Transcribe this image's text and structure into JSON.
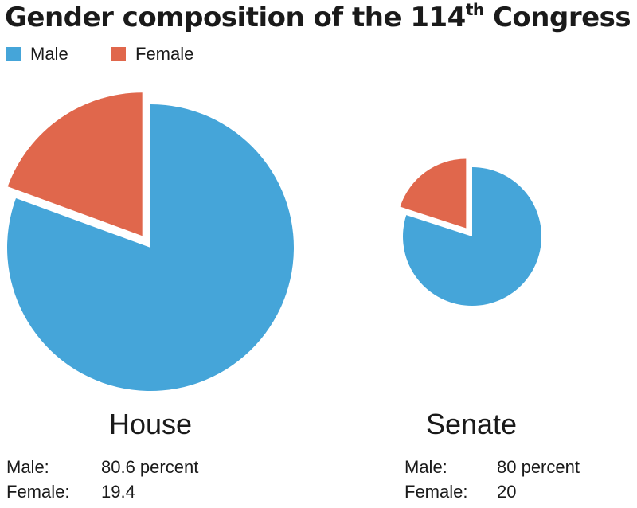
{
  "title_main": "Gender composition of the 114",
  "title_sup": "th",
  "title_tail": " Congress",
  "colors": {
    "male": "#45a5d9",
    "female": "#e0674c"
  },
  "legend": {
    "male": "Male",
    "female": "Female"
  },
  "house": {
    "label": "House",
    "male_key": "Male:",
    "male_value": "80.6 percent",
    "female_key": "Female:",
    "female_value": "19.4"
  },
  "senate": {
    "label": "Senate",
    "male_key": "Male:",
    "male_value": "80 percent",
    "female_key": "Female:",
    "female_value": "20"
  },
  "chart_data": [
    {
      "type": "pie",
      "title": "House",
      "categories": [
        "Male",
        "Female"
      ],
      "values": [
        80.6,
        19.4
      ],
      "colors": [
        "#45a5d9",
        "#e0674c"
      ],
      "exploded": "Female",
      "legend_position": "top-left"
    },
    {
      "type": "pie",
      "title": "Senate",
      "categories": [
        "Male",
        "Female"
      ],
      "values": [
        80,
        20
      ],
      "colors": [
        "#45a5d9",
        "#e0674c"
      ],
      "exploded": "Female"
    }
  ]
}
